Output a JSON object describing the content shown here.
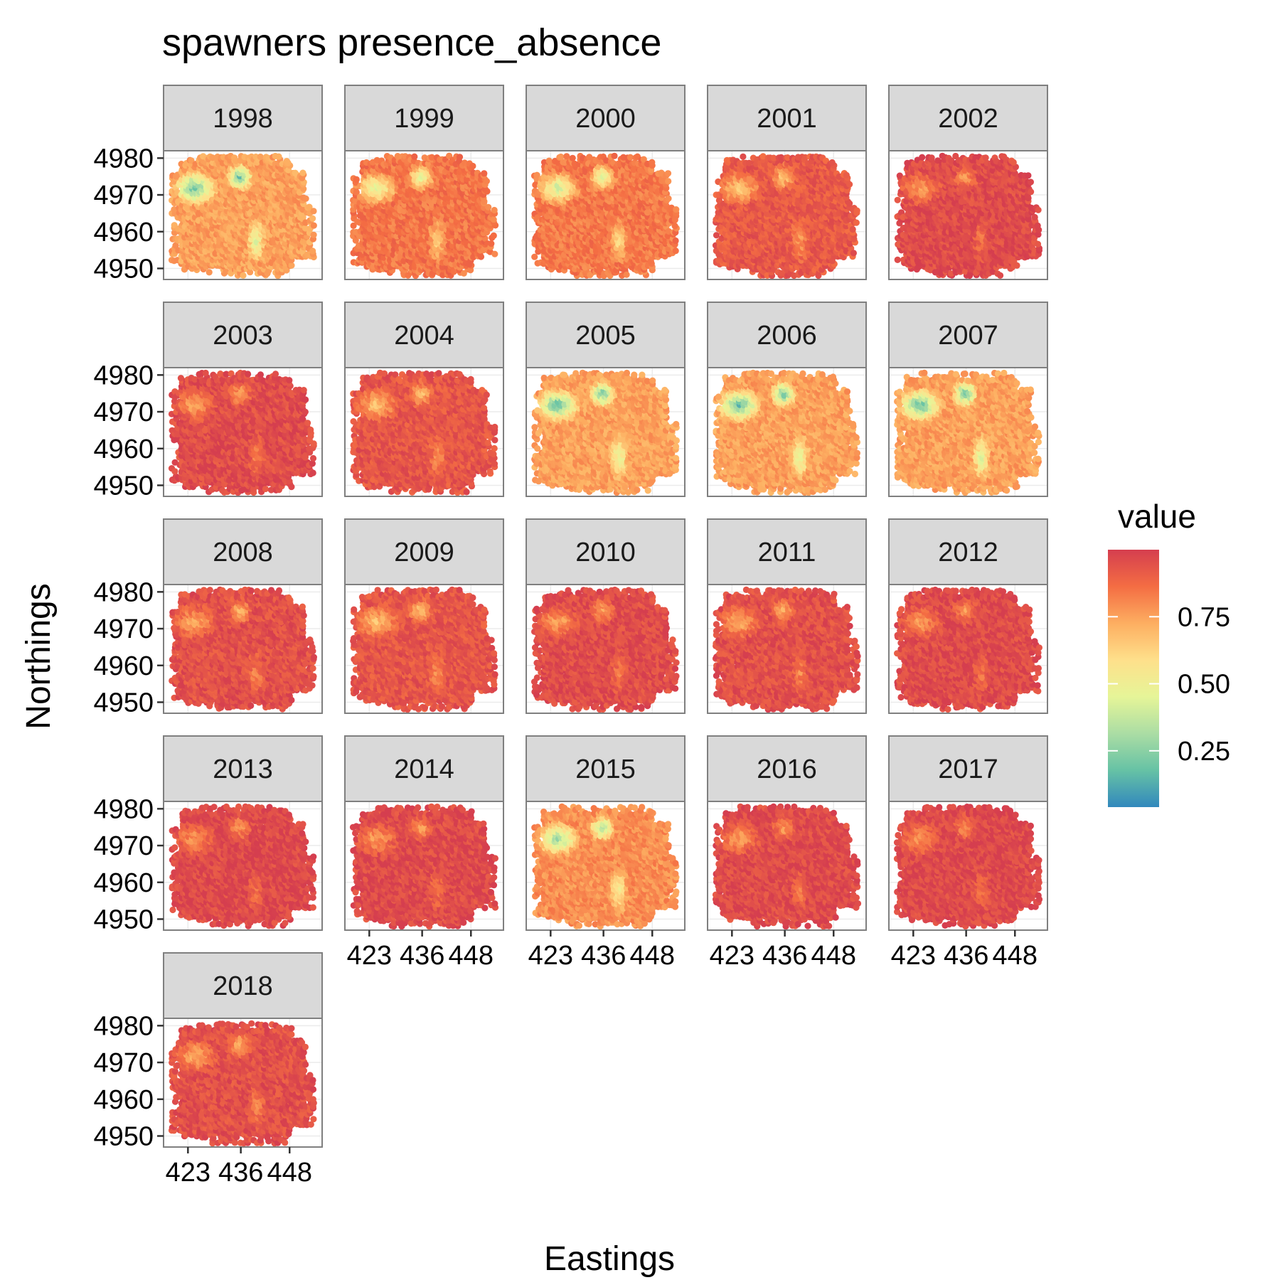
{
  "chart_data": {
    "type": "heatmap",
    "title": "spawners presence_absence",
    "xlabel": "Eastings",
    "ylabel": "Northings",
    "x_ticks": [
      "423",
      "436",
      "448"
    ],
    "x_tick_values": [
      423,
      436,
      448
    ],
    "y_ticks": [
      "4950",
      "4960",
      "4970",
      "4980"
    ],
    "y_tick_values": [
      4950,
      4960,
      4970,
      4980
    ],
    "xlim": [
      417,
      456
    ],
    "ylim": [
      4947,
      4982
    ],
    "grid": true,
    "legend": {
      "title": "value",
      "position": "right",
      "labels": [
        "0.75",
        "0.50",
        "0.25"
      ],
      "label_values": [
        0.75,
        0.5,
        0.25
      ],
      "range": [
        0.04,
        1.0
      ],
      "palette": [
        "#3288bd",
        "#66c2a5",
        "#abdda4",
        "#e6f598",
        "#fee08b",
        "#fdae61",
        "#f46d43",
        "#d53e4f"
      ]
    },
    "panels": [
      {
        "label": "1998",
        "mean_value": 0.55
      },
      {
        "label": "1999",
        "mean_value": 0.72
      },
      {
        "label": "2000",
        "mean_value": 0.7
      },
      {
        "label": "2001",
        "mean_value": 0.85
      },
      {
        "label": "2002",
        "mean_value": 0.93
      },
      {
        "label": "2003",
        "mean_value": 0.92
      },
      {
        "label": "2004",
        "mean_value": 0.87
      },
      {
        "label": "2005",
        "mean_value": 0.55
      },
      {
        "label": "2006",
        "mean_value": 0.55
      },
      {
        "label": "2007",
        "mean_value": 0.55
      },
      {
        "label": "2008",
        "mean_value": 0.9
      },
      {
        "label": "2009",
        "mean_value": 0.87
      },
      {
        "label": "2010",
        "mean_value": 0.92
      },
      {
        "label": "2011",
        "mean_value": 0.9
      },
      {
        "label": "2012",
        "mean_value": 0.93
      },
      {
        "label": "2013",
        "mean_value": 0.94
      },
      {
        "label": "2014",
        "mean_value": 0.93
      },
      {
        "label": "2015",
        "mean_value": 0.62
      },
      {
        "label": "2016",
        "mean_value": 0.93
      },
      {
        "label": "2017",
        "mean_value": 0.94
      },
      {
        "label": "2018",
        "mean_value": 0.9
      }
    ]
  }
}
